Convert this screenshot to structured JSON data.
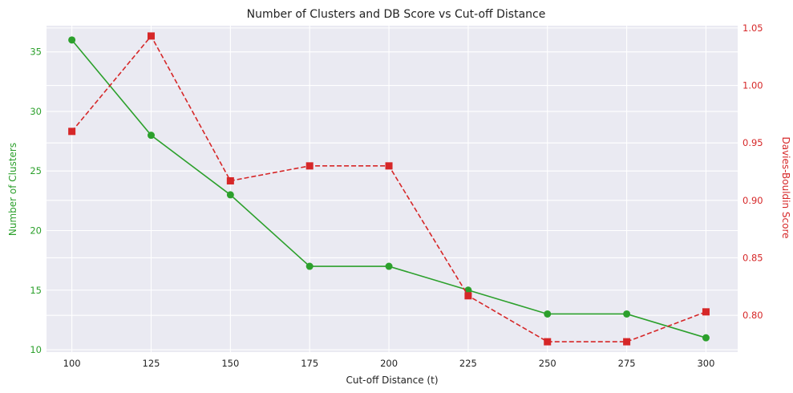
{
  "chart_data": {
    "type": "line",
    "title": "Number of Clusters and DB Score vs Cut-off Distance",
    "xlabel": "Cut-off Distance (t)",
    "ylabel": "Number of Clusters",
    "y2label": "Davies-Bouldin Score",
    "x": [
      100,
      125,
      150,
      175,
      200,
      225,
      250,
      275,
      300
    ],
    "xlim": [
      92,
      310
    ],
    "ylim": [
      9.8,
      37.2
    ],
    "y2lim": [
      0.768,
      1.052
    ],
    "x_ticks": [
      "100",
      "125",
      "150",
      "175",
      "200",
      "225",
      "250",
      "275",
      "300"
    ],
    "y_ticks": [
      10,
      15,
      20,
      25,
      30,
      35
    ],
    "y_tick_labels": [
      "10",
      "15",
      "20",
      "25",
      "30",
      "35"
    ],
    "y2_ticks": [
      0.8,
      0.85,
      0.9,
      0.95,
      1.0,
      1.05
    ],
    "y2_tick_labels": [
      "0.80",
      "0.85",
      "0.90",
      "0.95",
      "1.00",
      "1.05"
    ],
    "grid": true,
    "series": [
      {
        "axis": "left",
        "color": "#2ca02c",
        "style": "solid",
        "marker": "circle",
        "values": [
          36,
          28,
          23,
          17,
          17,
          15,
          13,
          13,
          11
        ]
      },
      {
        "axis": "right",
        "color": "#d62728",
        "style": "dashed",
        "marker": "square",
        "values": [
          0.96,
          1.043,
          0.917,
          0.93,
          0.93,
          0.817,
          0.777,
          0.777,
          0.803
        ]
      }
    ]
  },
  "colors": {
    "background": "#eaeaf2",
    "grid": "#ffffff",
    "left_axis": "#2ca02c",
    "right_axis": "#d62728"
  }
}
